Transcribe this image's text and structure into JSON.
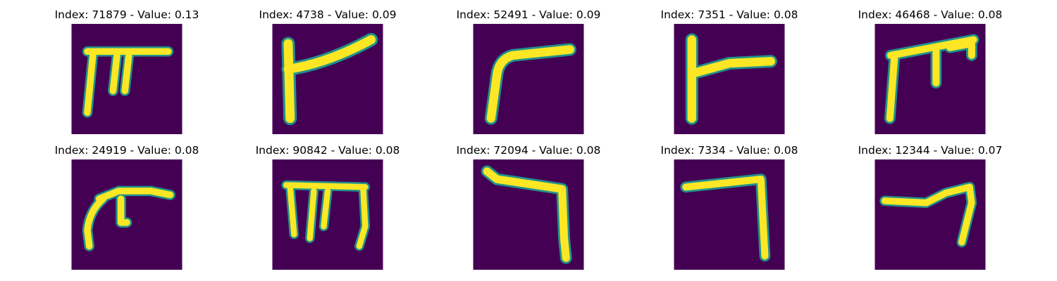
{
  "colors": {
    "background": "#440154",
    "edge": "#21918c",
    "stroke": "#fde725"
  },
  "panels": [
    {
      "title": "Index: 71879 - Value: 0.13",
      "index": 71879,
      "value": 0.13
    },
    {
      "title": "Index: 4738 - Value: 0.09",
      "index": 4738,
      "value": 0.09
    },
    {
      "title": "Index: 52491 - Value: 0.09",
      "index": 52491,
      "value": 0.09
    },
    {
      "title": "Index: 7351 - Value: 0.08",
      "index": 7351,
      "value": 0.08
    },
    {
      "title": "Index: 46468 - Value: 0.08",
      "index": 46468,
      "value": 0.08
    },
    {
      "title": "Index: 24919 - Value: 0.08",
      "index": 24919,
      "value": 0.08
    },
    {
      "title": "Index: 90842 - Value: 0.08",
      "index": 90842,
      "value": 0.08
    },
    {
      "title": "Index: 72094 - Value: 0.08",
      "index": 72094,
      "value": 0.08
    },
    {
      "title": "Index: 7334 - Value: 0.08",
      "index": 7334,
      "value": 0.08
    },
    {
      "title": "Index: 12344 - Value: 0.07",
      "index": 12344,
      "value": 0.07
    }
  ]
}
